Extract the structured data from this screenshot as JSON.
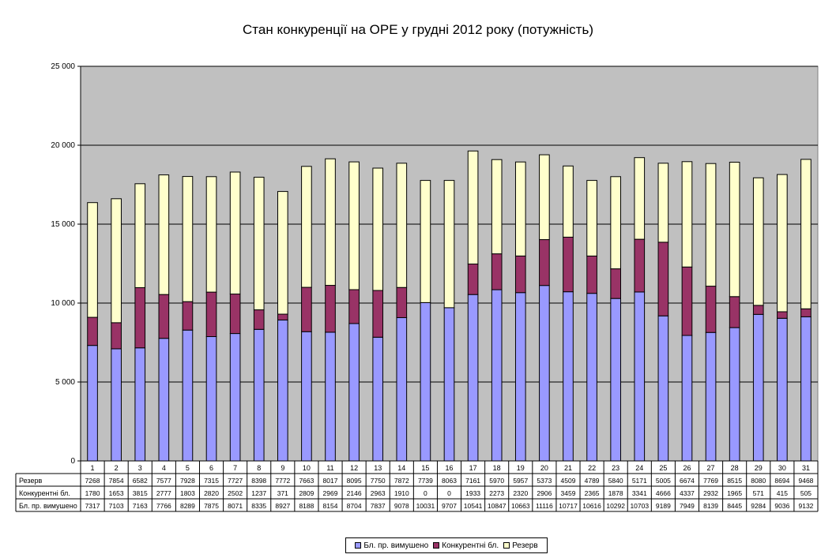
{
  "title": "Стан конкуренції на ОРЕ  у грудні 2012 року (потужність)",
  "colors": {
    "plot_background": "#c0c0c0",
    "forced": "#9999ff",
    "competitive": "#993366",
    "reserve": "#ffffcc"
  },
  "chart_data": {
    "type": "bar",
    "stacked": true,
    "title": "Стан конкуренції на ОРЕ  у грудні 2012 року (потужність)",
    "xlabel": "",
    "ylabel": "",
    "ylim": [
      0,
      25000
    ],
    "yticks": [
      "0",
      "5 000",
      "10 000",
      "15 000",
      "20 000",
      "25 000"
    ],
    "grid": "horizontal",
    "legend_position": "bottom",
    "categories": [
      "1",
      "2",
      "3",
      "4",
      "5",
      "6",
      "7",
      "8",
      "9",
      "10",
      "11",
      "12",
      "13",
      "14",
      "15",
      "16",
      "17",
      "18",
      "19",
      "20",
      "21",
      "22",
      "23",
      "24",
      "25",
      "26",
      "27",
      "28",
      "29",
      "30",
      "31"
    ],
    "series": [
      {
        "name": "Бл. пр. вимушено",
        "color": "#9999ff",
        "values": [
          7317,
          7103,
          7163,
          7766,
          8289,
          7875,
          8071,
          8335,
          8927,
          8188,
          8154,
          8704,
          7837,
          9078,
          10031,
          9707,
          10541,
          10847,
          10663,
          11116,
          10717,
          10616,
          10292,
          10703,
          9189,
          7949,
          8139,
          8445,
          9284,
          9036,
          9132
        ]
      },
      {
        "name": "Конкурентні бл.",
        "color": "#993366",
        "values": [
          1780,
          1653,
          3815,
          2777,
          1803,
          2820,
          2502,
          1237,
          371,
          2809,
          2969,
          2146,
          2963,
          1910,
          0,
          0,
          1933,
          2273,
          2320,
          2906,
          3459,
          2365,
          1878,
          3341,
          4666,
          4337,
          2932,
          1965,
          571,
          415,
          505
        ]
      },
      {
        "name": "Резерв",
        "color": "#ffffcc",
        "values": [
          7268,
          7854,
          6582,
          7577,
          7928,
          7315,
          7727,
          8398,
          7772,
          7663,
          8017,
          8095,
          7750,
          7872,
          7739,
          8063,
          7161,
          5970,
          5957,
          5373,
          4509,
          4789,
          5840,
          5171,
          5005,
          6674,
          7769,
          8515,
          8080,
          8694,
          9468
        ]
      }
    ],
    "table_rows": [
      "Резерв",
      "Конкурентні бл.",
      "Бл. пр. вимушено"
    ]
  }
}
